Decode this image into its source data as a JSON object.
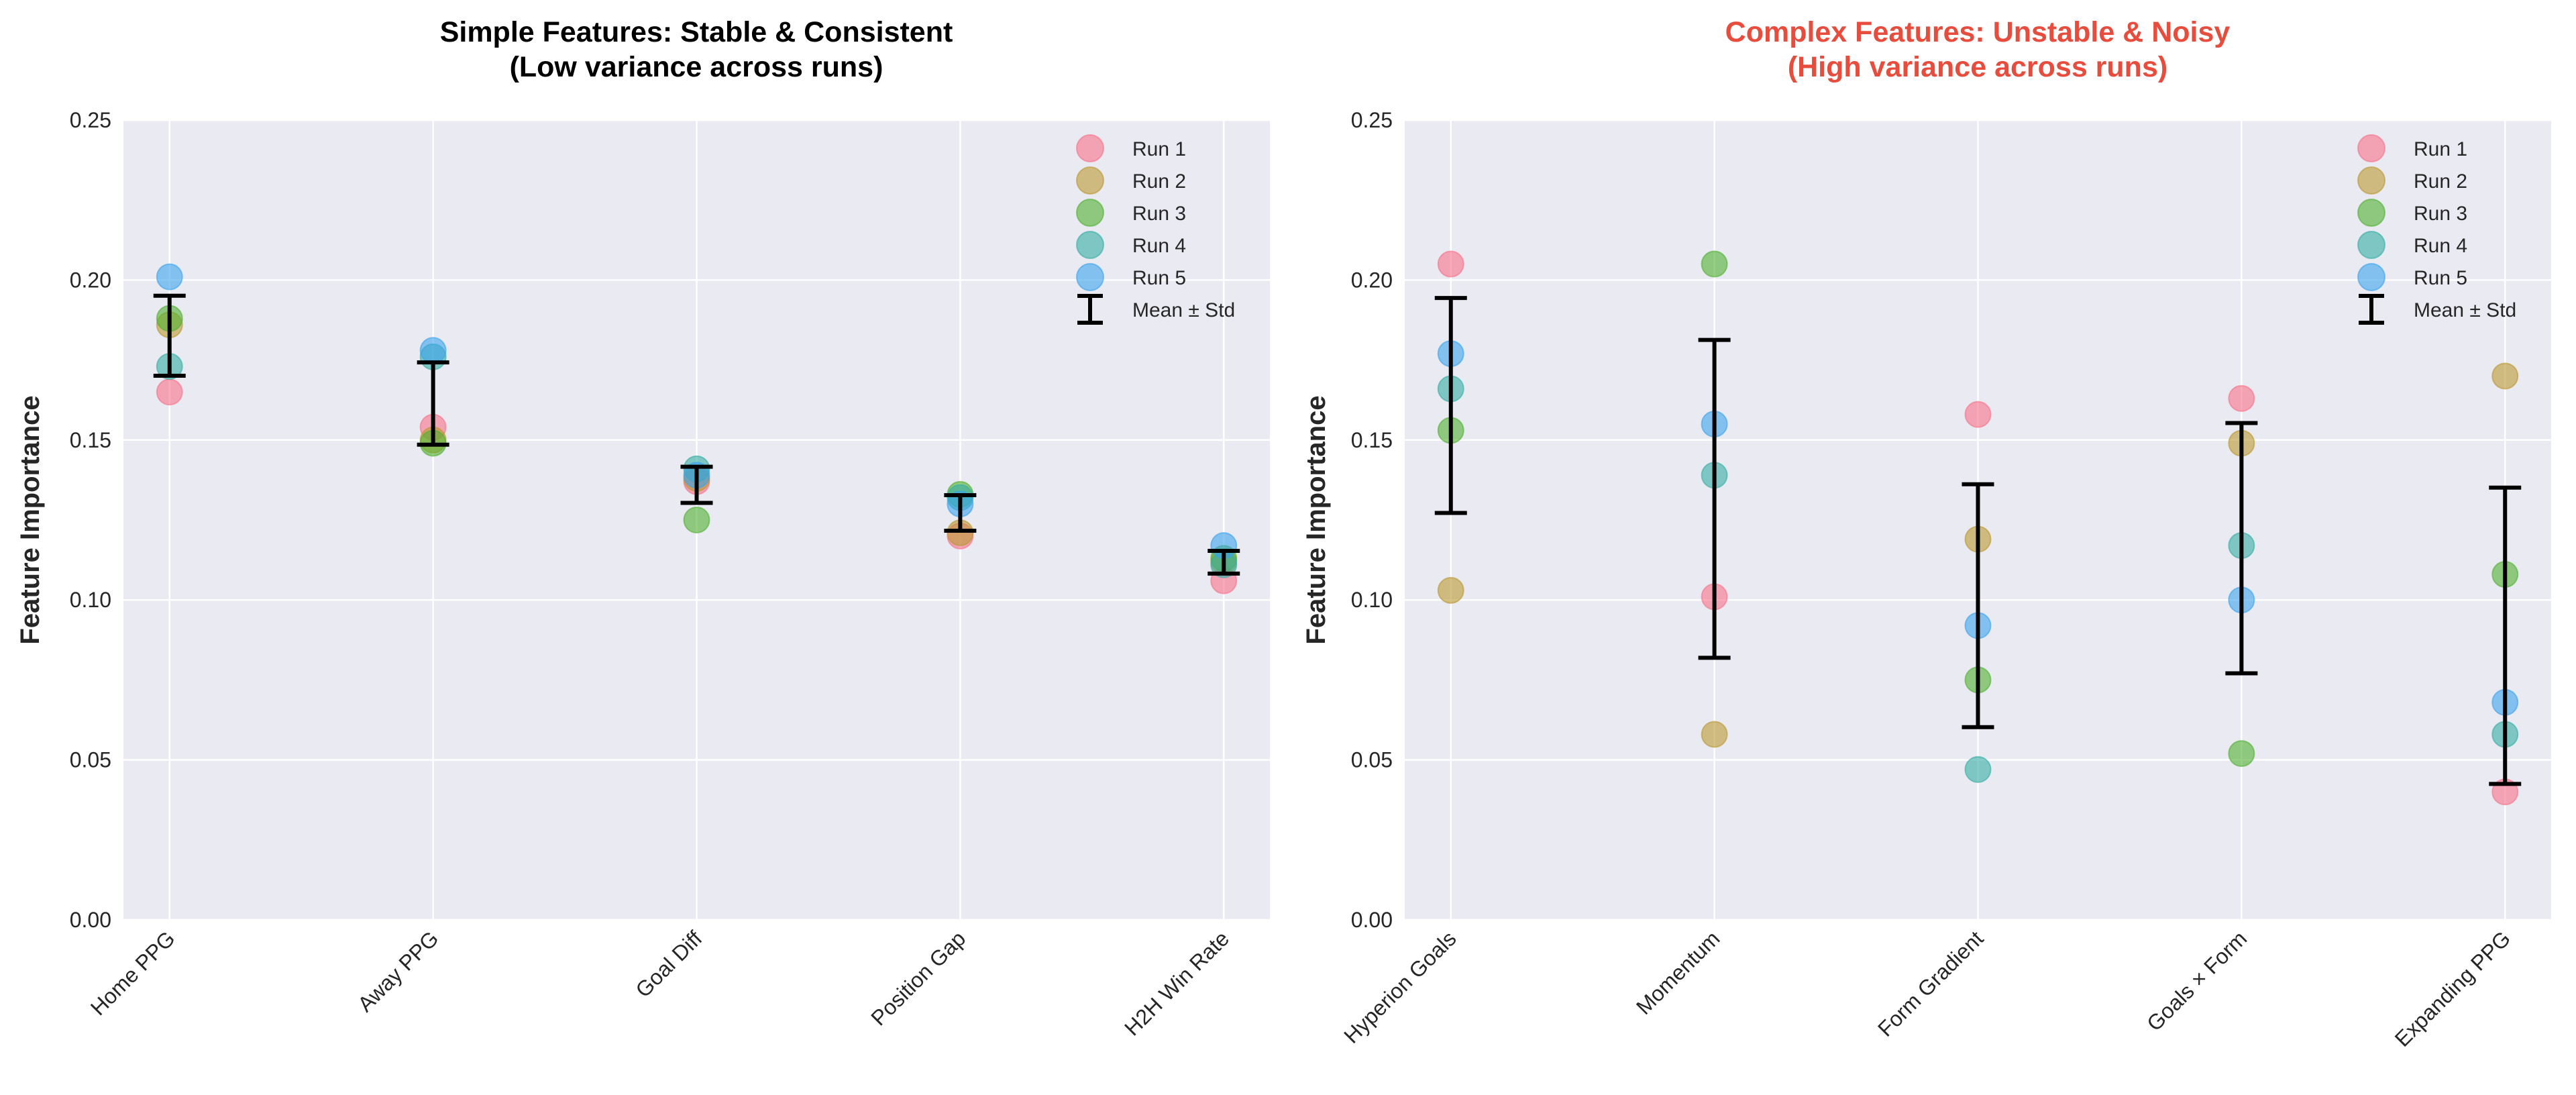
{
  "colors": {
    "runs": [
      "#f77189",
      "#bb9832",
      "#50b131",
      "#36ada4",
      "#3ba3ec"
    ],
    "left_title": "#262626",
    "right_title": "#e74c3c",
    "background": "#eaeaf2",
    "grid": "#ffffff"
  },
  "chart_data": [
    {
      "type": "scatter",
      "title": "Simple Features: Stable & Consistent",
      "subtitle": "(Low variance across runs)",
      "xlabel": "",
      "ylabel": "Feature Importance",
      "ylim": [
        0,
        0.25
      ],
      "yticks": [
        "0.00",
        "0.05",
        "0.10",
        "0.15",
        "0.20",
        "0.25"
      ],
      "grid": true,
      "legend_position": "top-right",
      "categories": [
        "Home PPG",
        "Away PPG",
        "Goal Diff",
        "Position Gap",
        "H2H Win Rate"
      ],
      "series": [
        {
          "name": "Run 1",
          "values": [
            0.165,
            0.154,
            0.137,
            0.12,
            0.106
          ]
        },
        {
          "name": "Run 2",
          "values": [
            0.186,
            0.15,
            0.138,
            0.121,
            0.112
          ]
        },
        {
          "name": "Run 3",
          "values": [
            0.188,
            0.149,
            0.125,
            0.133,
            0.113
          ]
        },
        {
          "name": "Run 4",
          "values": [
            0.173,
            0.176,
            0.141,
            0.132,
            0.111
          ]
        },
        {
          "name": "Run 5",
          "values": [
            0.201,
            0.178,
            0.139,
            0.13,
            0.117
          ]
        }
      ],
      "errorbar_label": "Mean ± Std"
    },
    {
      "type": "scatter",
      "title": "Complex Features: Unstable & Noisy",
      "subtitle": "(High variance across runs)",
      "xlabel": "",
      "ylabel": "Feature Importance",
      "ylim": [
        0,
        0.25
      ],
      "yticks": [
        "0.00",
        "0.05",
        "0.10",
        "0.15",
        "0.20",
        "0.25"
      ],
      "grid": true,
      "legend_position": "top-right",
      "categories": [
        "Hyperion Goals",
        "Momentum",
        "Form Gradient",
        "Goals × Form",
        "Expanding PPG"
      ],
      "series": [
        {
          "name": "Run 1",
          "values": [
            0.205,
            0.101,
            0.158,
            0.163,
            0.04
          ]
        },
        {
          "name": "Run 2",
          "values": [
            0.103,
            0.058,
            0.119,
            0.149,
            0.17
          ]
        },
        {
          "name": "Run 3",
          "values": [
            0.153,
            0.205,
            0.075,
            0.052,
            0.108
          ]
        },
        {
          "name": "Run 4",
          "values": [
            0.166,
            0.139,
            0.047,
            0.117,
            0.058
          ]
        },
        {
          "name": "Run 5",
          "values": [
            0.177,
            0.155,
            0.092,
            0.1,
            0.068
          ]
        }
      ],
      "errorbar_label": "Mean ± Std"
    }
  ]
}
